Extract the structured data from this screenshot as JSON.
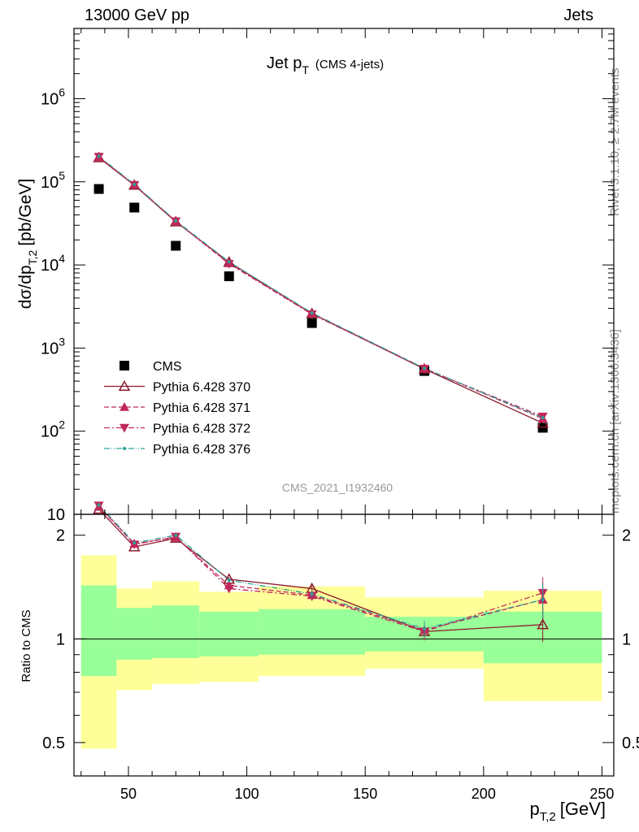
{
  "header": {
    "left": "13000 GeV pp",
    "right": "Jets"
  },
  "side_labels": {
    "rivet": "Rivet 3.1.10, ≥ 2.7M events",
    "mcplots": "mcplots.cern.ch [arXiv:1306.3436]"
  },
  "colors": {
    "cms": "#000000",
    "p370": "#8b1a2b",
    "p371": "#c0285a",
    "p372": "#c0285a",
    "p376": "#2aa198",
    "band_inner": "#99ff99",
    "band_outer": "#ffff99"
  },
  "chart_data": [
    {
      "type": "scatter",
      "title_main": "Jet p",
      "title_sub": "T",
      "title_extra": "(CMS 4-jets)",
      "watermark": "CMS_2021_I1932460",
      "ylabel_main": "dσ/dp",
      "ylabel_sub": "T,2",
      "ylabel_unit": "[pb/GeV]",
      "y_scale": "log",
      "xlim": [
        27,
        255
      ],
      "ylim": [
        10,
        7000000
      ],
      "y_ticks": [
        {
          "value": 10,
          "base": "10",
          "exp": ""
        },
        {
          "value": 100,
          "base": "10",
          "exp": "2"
        },
        {
          "value": 1000,
          "base": "10",
          "exp": "3"
        },
        {
          "value": 10000,
          "base": "10",
          "exp": "4"
        },
        {
          "value": 100000,
          "base": "10",
          "exp": "5"
        },
        {
          "value": 1000000,
          "base": "10",
          "exp": "6"
        }
      ],
      "legend_position": "lower-left",
      "x": [
        37.5,
        52.5,
        70,
        92.5,
        127.5,
        175,
        225
      ],
      "series": [
        {
          "name": "CMS",
          "style": "square",
          "values": [
            82000,
            49000,
            17000,
            7300,
            2000,
            530,
            110
          ]
        },
        {
          "name": "Pythia 6.428 370",
          "style": "open-triangle-up",
          "values": [
            195000,
            91000,
            33000,
            10800,
            2600,
            560,
            125
          ]
        },
        {
          "name": "Pythia 6.428 371",
          "style": "triangle-up",
          "values": [
            198000,
            92000,
            33500,
            10500,
            2600,
            570,
            142
          ]
        },
        {
          "name": "Pythia 6.428 372",
          "style": "triangle-down",
          "values": [
            200000,
            91500,
            33500,
            10300,
            2550,
            565,
            150
          ]
        },
        {
          "name": "Pythia 6.428 376",
          "style": "star",
          "values": [
            203000,
            93000,
            34000,
            10900,
            2650,
            570,
            145
          ]
        }
      ]
    },
    {
      "type": "scatter",
      "ylabel": "Ratio to CMS",
      "xlabel_main": "p",
      "xlabel_sub": "T,2",
      "xlabel_unit": "[GeV]",
      "y_scale": "log",
      "xlim": [
        27,
        255
      ],
      "ylim": [
        0.4,
        2.3
      ],
      "x_ticks": [
        50,
        100,
        150,
        200,
        250
      ],
      "y_ticks": [
        0.5,
        1,
        2
      ],
      "y_tick_labels": [
        "0.5",
        "1",
        "2"
      ],
      "reference_line": 1,
      "bands": [
        {
          "x0": 30,
          "x1": 45,
          "inner": [
            0.78,
            1.43
          ],
          "outer": [
            0.48,
            1.75
          ]
        },
        {
          "x0": 45,
          "x1": 60,
          "inner": [
            0.87,
            1.23
          ],
          "outer": [
            0.71,
            1.4
          ]
        },
        {
          "x0": 60,
          "x1": 80,
          "inner": [
            0.88,
            1.25
          ],
          "outer": [
            0.74,
            1.47
          ]
        },
        {
          "x0": 80,
          "x1": 105,
          "inner": [
            0.89,
            1.2
          ],
          "outer": [
            0.75,
            1.37
          ]
        },
        {
          "x0": 105,
          "x1": 150,
          "inner": [
            0.9,
            1.22
          ],
          "outer": [
            0.78,
            1.42
          ]
        },
        {
          "x0": 150,
          "x1": 200,
          "inner": [
            0.92,
            1.16
          ],
          "outer": [
            0.82,
            1.32
          ]
        },
        {
          "x0": 200,
          "x1": 250,
          "inner": [
            0.85,
            1.2
          ],
          "outer": [
            0.66,
            1.38
          ]
        }
      ],
      "x": [
        37.5,
        52.5,
        70,
        92.5,
        127.5,
        175,
        225
      ],
      "series": [
        {
          "name": "Pythia 6.428 370",
          "style": "open-triangle-up",
          "values": [
            2.38,
            1.85,
            1.96,
            1.49,
            1.4,
            1.05,
            1.1
          ],
          "errors": [
            0.02,
            0.02,
            0.02,
            0.02,
            0.03,
            0.06,
            0.12
          ]
        },
        {
          "name": "Pythia 6.428 371",
          "style": "triangle-up",
          "values": [
            2.42,
            1.89,
            1.97,
            1.43,
            1.34,
            1.06,
            1.3
          ],
          "errors": [
            0.02,
            0.02,
            0.02,
            0.02,
            0.03,
            0.06,
            0.15
          ]
        },
        {
          "name": "Pythia 6.428 372",
          "style": "triangle-down",
          "values": [
            2.44,
            1.88,
            1.98,
            1.4,
            1.33,
            1.05,
            1.36
          ],
          "errors": [
            0.02,
            0.02,
            0.02,
            0.02,
            0.03,
            0.06,
            0.15
          ]
        },
        {
          "name": "Pythia 6.428 376",
          "style": "star",
          "values": [
            2.45,
            1.9,
            2.0,
            1.48,
            1.35,
            1.07,
            1.3
          ],
          "errors": [
            0.02,
            0.02,
            0.02,
            0.02,
            0.03,
            0.06,
            0.15
          ]
        }
      ]
    }
  ]
}
